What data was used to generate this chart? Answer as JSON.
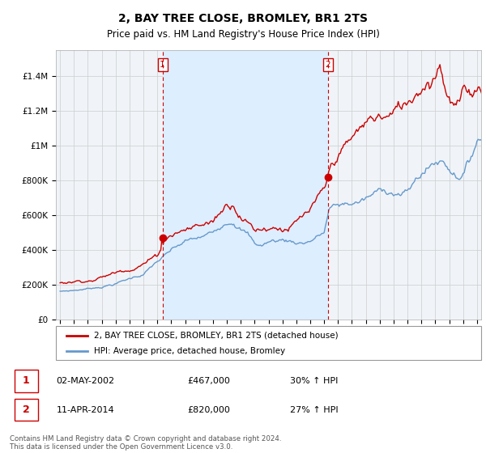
{
  "title": "2, BAY TREE CLOSE, BROMLEY, BR1 2TS",
  "subtitle": "Price paid vs. HM Land Registry's House Price Index (HPI)",
  "legend_line1": "2, BAY TREE CLOSE, BROMLEY, BR1 2TS (detached house)",
  "legend_line2": "HPI: Average price, detached house, Bromley",
  "transaction1_date": "02-MAY-2002",
  "transaction1_price": "£467,000",
  "transaction1_hpi": "30% ↑ HPI",
  "transaction2_date": "11-APR-2014",
  "transaction2_price": "£820,000",
  "transaction2_hpi": "27% ↑ HPI",
  "footer": "Contains HM Land Registry data © Crown copyright and database right 2024.\nThis data is licensed under the Open Government Licence v3.0.",
  "red_color": "#cc0000",
  "blue_color": "#6699cc",
  "shade_color": "#ddeeff",
  "transaction1_x": 2002.37,
  "transaction1_y": 467000,
  "transaction2_x": 2014.28,
  "transaction2_y": 820000,
  "xlim_left": 1994.7,
  "xlim_right": 2025.3,
  "ylim": [
    0,
    1550000
  ],
  "yticks": [
    0,
    200000,
    400000,
    600000,
    800000,
    1000000,
    1200000,
    1400000
  ],
  "ytick_labels": [
    "£0",
    "£200K",
    "£400K",
    "£600K",
    "£800K",
    "£1M",
    "£1.2M",
    "£1.4M"
  ]
}
